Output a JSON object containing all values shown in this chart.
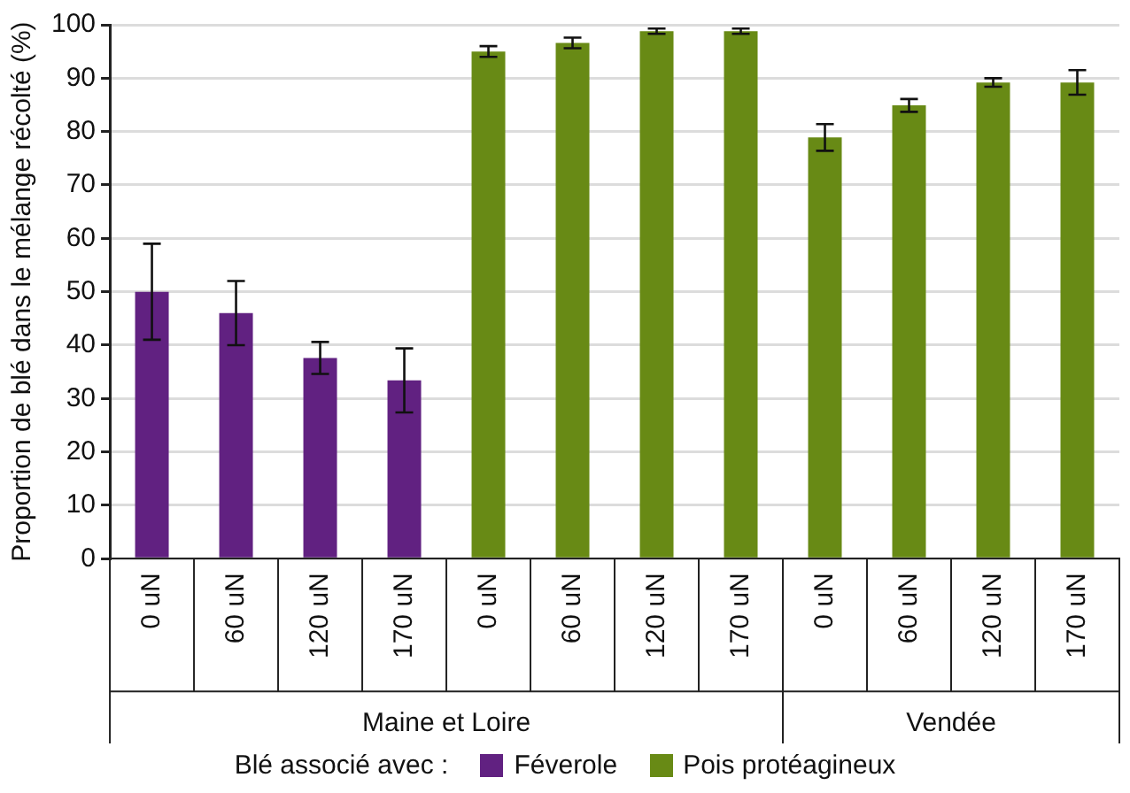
{
  "chart_data": {
    "type": "bar",
    "ylabel": "Proportion de blé dans le mélange récolté (%)",
    "legend_title": "Blé associé avec :",
    "categories": [
      "0 uN",
      "60 uN",
      "120 uN",
      "170 uN",
      "0 uN",
      "60 uN",
      "120 uN",
      "170 uN",
      "0 uN",
      "60 uN",
      "120 uN",
      "170 uN"
    ],
    "series": [
      {
        "name": "Féverole",
        "color": "#612181",
        "values": [
          50,
          46,
          37.6,
          33.4,
          null,
          null,
          null,
          null,
          null,
          null,
          null,
          null
        ],
        "errors": [
          9,
          6,
          3,
          6,
          null,
          null,
          null,
          null,
          null,
          null,
          null,
          null
        ]
      },
      {
        "name": "Pois protéagineux",
        "color": "#688a15",
        "values": [
          null,
          null,
          null,
          null,
          95,
          96.6,
          98.8,
          98.8,
          78.9,
          84.9,
          89.2,
          89.2
        ],
        "errors": [
          null,
          null,
          null,
          null,
          1,
          1,
          0.5,
          0.5,
          2.5,
          1.2,
          0.8,
          2.3
        ]
      }
    ],
    "annotations": [
      "Maine et Loire",
      "Vendée"
    ],
    "ylim": [
      0,
      100
    ],
    "yticks": [
      0,
      10,
      20,
      30,
      40,
      50,
      60,
      70,
      80,
      90,
      100
    ],
    "grid": "y",
    "legend": "bottom"
  }
}
